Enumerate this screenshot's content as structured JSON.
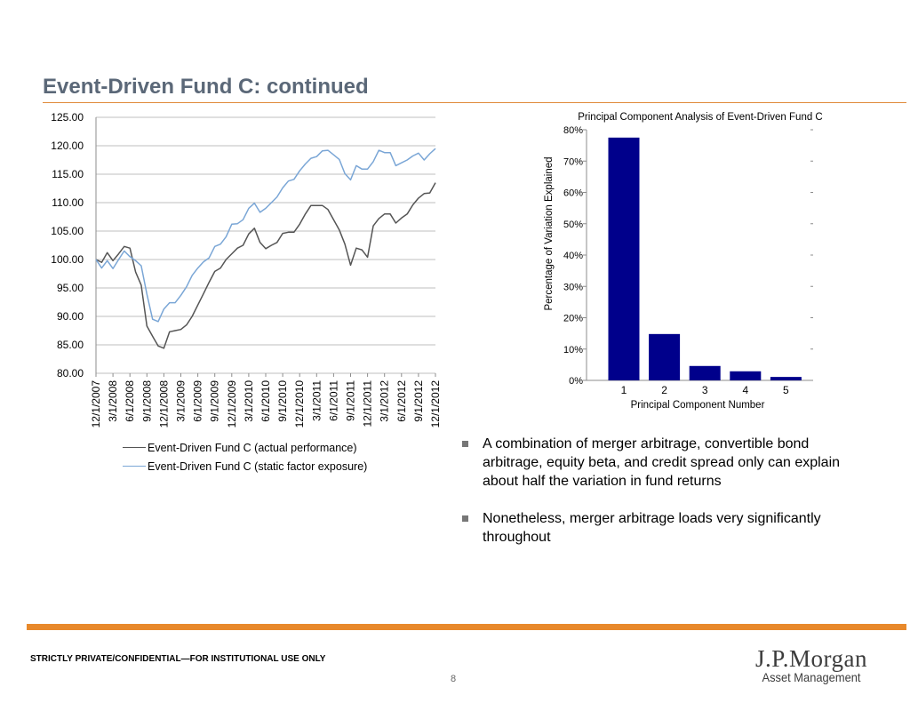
{
  "slide": {
    "title": "Event-Driven Fund C: continued",
    "confidential": "STRICTLY PRIVATE/CONFIDENTIAL—FOR INSTITUTIONAL USE ONLY",
    "page_number": "8",
    "logo_text": "J.P.Morgan",
    "logo_subtext": "Asset Management"
  },
  "bullets": [
    "A combination of merger arbitrage, convertible bond arbitrage, equity beta, and credit spread only can explain about half the variation in fund returns",
    "Nonetheless, merger arbitrage loads very significantly throughout"
  ],
  "colors": {
    "title": "#5b6878",
    "accent_orange": "#e8892b",
    "actual_line": "#555555",
    "static_line": "#7aa6d6",
    "bar_fill": "#00008b"
  },
  "chart_data": [
    {
      "type": "line",
      "title": "",
      "xlabel": "",
      "ylabel": "",
      "ylim": [
        80,
        125
      ],
      "yticks": [
        "125.00",
        "120.00",
        "115.00",
        "110.00",
        "105.00",
        "100.00",
        "95.00",
        "90.00",
        "85.00",
        "80.00"
      ],
      "xtick_labels": [
        "12/1/2007",
        "3/1/2008",
        "6/1/2008",
        "9/1/2008",
        "12/1/2008",
        "3/1/2009",
        "6/1/2009",
        "9/1/2009",
        "12/1/2009",
        "3/1/2010",
        "6/1/2010",
        "9/1/2010",
        "12/1/2010",
        "3/1/2011",
        "6/1/2011",
        "9/1/2011",
        "12/1/2011",
        "3/1/2012",
        "6/1/2012",
        "9/1/2012",
        "12/1/2012"
      ],
      "grid": "horizontal",
      "legend_position": "bottom",
      "series": [
        {
          "name": "Event-Driven Fund C (actual performance)",
          "values": [
            100,
            99.5,
            101.2,
            99.8,
            101,
            102.3,
            102,
            97.8,
            95.5,
            88.3,
            86.5,
            84.8,
            84.4,
            87.3,
            87.5,
            87.7,
            88.5,
            90,
            92,
            94,
            96,
            97.9,
            98.5,
            100,
            101,
            102,
            102.5,
            104.5,
            105.5,
            103,
            101.9,
            102.5,
            103,
            104.6,
            104.8,
            104.8,
            106.2,
            108,
            109.5,
            109.5,
            109.5,
            108.8,
            107,
            105.2,
            102.7,
            99,
            102,
            101.7,
            100.4,
            105.9,
            107.2,
            108,
            108,
            106.4,
            107.3,
            108,
            109.6,
            110.8,
            111.6,
            111.7,
            113.5
          ]
        },
        {
          "name": "Event-Driven Fund C (static factor exposure)",
          "values": [
            100,
            98.5,
            99.8,
            98.4,
            100,
            101.5,
            100.5,
            99.8,
            98.9,
            93.9,
            89.5,
            89.1,
            91.3,
            92.4,
            92.4,
            93.7,
            95.2,
            97.2,
            98.5,
            99.6,
            100.3,
            102.3,
            102.7,
            104,
            106.2,
            106.3,
            107,
            109,
            109.9,
            108.3,
            109,
            110,
            111,
            112.6,
            113.8,
            114.1,
            115.6,
            116.8,
            117.8,
            118.1,
            119.1,
            119.2,
            118.4,
            117.6,
            115.1,
            114,
            116.5,
            115.9,
            115.9,
            117.2,
            119.2,
            118.8,
            118.8,
            116.5,
            117,
            117.5,
            118.2,
            118.7,
            117.5,
            118.6,
            119.5
          ]
        }
      ]
    },
    {
      "type": "bar",
      "title": "Principal Component Analysis of Event-Driven Fund C",
      "xlabel": "Principal Component Number",
      "ylabel": "Percentage of Variation Explained",
      "categories": [
        "1",
        "2",
        "3",
        "4",
        "5"
      ],
      "values": [
        77.5,
        14.8,
        4.6,
        2.9,
        1.1
      ],
      "ylim": [
        0,
        80
      ],
      "yticks": [
        "80%",
        "70%",
        "60%",
        "50%",
        "40%",
        "30%",
        "20%",
        "10%",
        "0%"
      ],
      "grid": "none",
      "legend_position": "none"
    }
  ]
}
